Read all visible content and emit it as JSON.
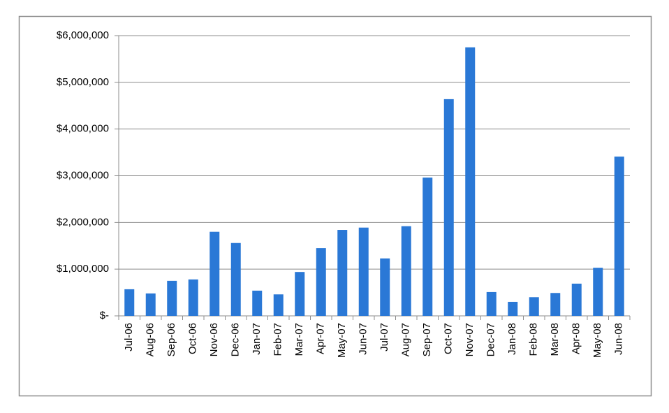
{
  "chart_data": {
    "type": "bar",
    "categories": [
      "Jul-06",
      "Aug-06",
      "Sep-06",
      "Oct-06",
      "Nov-06",
      "Dec-06",
      "Jan-07",
      "Feb-07",
      "Mar-07",
      "Apr-07",
      "May-07",
      "Jun-07",
      "Jul-07",
      "Aug-07",
      "Sep-07",
      "Oct-07",
      "Nov-07",
      "Dec-07",
      "Jan-08",
      "Feb-08",
      "Mar-08",
      "Apr-08",
      "May-08",
      "Jun-08"
    ],
    "values": [
      570000,
      480000,
      750000,
      780000,
      1800000,
      1560000,
      540000,
      460000,
      940000,
      1450000,
      1840000,
      1890000,
      1230000,
      1920000,
      2960000,
      4640000,
      5750000,
      510000,
      300000,
      400000,
      490000,
      690000,
      1030000,
      3410000
    ],
    "color": "#2a78d6",
    "ylim": [
      0,
      6000000
    ],
    "yticks": [
      {
        "value": 0,
        "label": "$-"
      },
      {
        "value": 1000000,
        "label": "$1,000,000"
      },
      {
        "value": 2000000,
        "label": "$2,000,000"
      },
      {
        "value": 3000000,
        "label": "$3,000,000"
      },
      {
        "value": 4000000,
        "label": "$4,000,000"
      },
      {
        "value": 5000000,
        "label": "$5,000,000"
      },
      {
        "value": 6000000,
        "label": "$6,000,000"
      }
    ],
    "grid": true
  }
}
